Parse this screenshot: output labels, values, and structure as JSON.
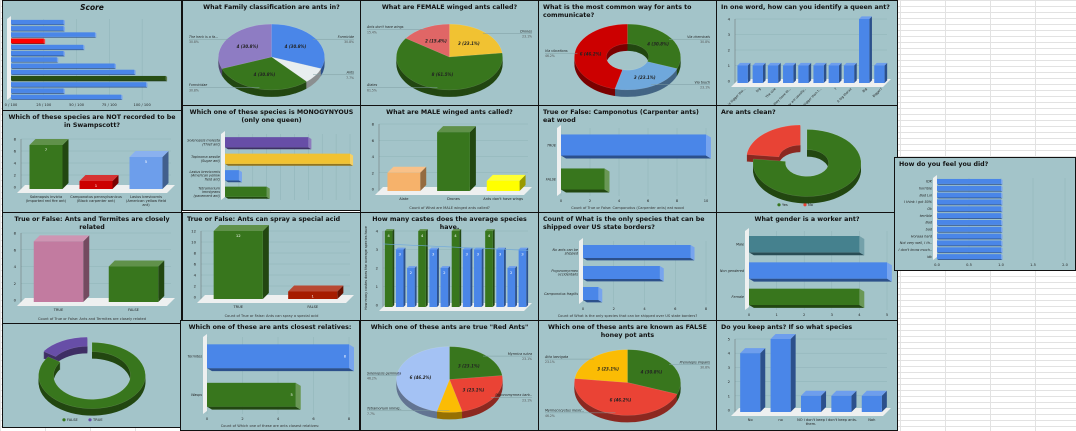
{
  "charts": [
    {
      "title": "Score",
      "type": "hbar",
      "categories": [
        "",
        "",
        "",
        "",
        "",
        "",
        "",
        "",
        "",
        "",
        "",
        "",
        ""
      ],
      "values": [
        40,
        40,
        64,
        25,
        55,
        40,
        35,
        79,
        94,
        118,
        103,
        40,
        84
      ],
      "colors": [
        "#4a86e8",
        "#4a86e8",
        "#4a86e8",
        "#ff0000",
        "#4a86e8",
        "#4a86e8",
        "#4a86e8",
        "#4a86e8",
        "#4a86e8",
        "#274e13",
        "#4a86e8",
        "#4a86e8",
        "#4a86e8"
      ],
      "xlim": [
        0,
        122
      ],
      "ticks": [
        0,
        25,
        50,
        75,
        100
      ],
      "tick_labels": [
        "0 / 100",
        "25 / 100",
        "50 / 100",
        "75 / 100",
        "100 / 100"
      ]
    },
    {
      "title": "What Family classification are ants in?",
      "type": "pie",
      "categories": [
        "Formicide",
        "Ants",
        "Formicidae",
        "The heck is a fa..."
      ],
      "values": [
        4,
        1,
        4,
        4
      ],
      "percents": [
        "30.8%",
        "7.7%",
        "30.8%",
        "30.8%"
      ],
      "slice_labels": [
        "4 (30.8%)",
        "",
        "4 (30.8%)",
        "4 (30.8%)"
      ],
      "colors": [
        "#4a86e8",
        "#e8eef0",
        "#38761d",
        "#8e7cc3"
      ]
    },
    {
      "title": "What are FEMALE winged ants called?",
      "type": "pie",
      "categories": [
        "Drones",
        "Alates",
        "Ants don't have wings"
      ],
      "values": [
        3,
        8,
        2
      ],
      "percents": [
        "23.1%",
        "61.5%",
        "15.4%"
      ],
      "slice_labels": [
        "3 (23.1%)",
        "8 (61.5%)",
        "2 (15.4%)"
      ],
      "colors": [
        "#f1c232",
        "#38761d",
        "#e06666"
      ]
    },
    {
      "title": "What is the most common way for ants to communicate?",
      "type": "donut",
      "categories": [
        "Via chemicals",
        "Via touch",
        "Via vibrations"
      ],
      "values": [
        4,
        3,
        6
      ],
      "percents": [
        "30.8%",
        "23.1%",
        "46.2%"
      ],
      "slice_labels": [
        "4 (30.8%)",
        "3 (23.1%)",
        "6 (46.2%)"
      ],
      "colors": [
        "#38761d",
        "#6fa8dc",
        "#cc0000"
      ]
    },
    {
      "title": "In one word, how can you identify a queen ant?",
      "type": "vbar",
      "categories": [
        "...is bigger tha...",
        "big",
        "The size",
        "...they have th...",
        "...they are usually...",
        "...is bigger than t...",
        "?",
        "A big thorax",
        "Big",
        "Bigger?"
      ],
      "values": [
        1,
        1,
        1,
        1,
        1,
        1,
        1,
        1,
        4,
        1
      ],
      "color": "#4a86e8",
      "ylim": [
        0,
        4
      ],
      "ticks": [
        0,
        1,
        2,
        3,
        4
      ],
      "tick_labels": [
        "0",
        "1",
        "2",
        "3",
        "4"
      ],
      "rotate_labels": true
    },
    {
      "title": "Which of these species are NOT recorded to be in Swampscott?",
      "type": "vbar",
      "categories": [
        "Solenopsis invicta\n(Imported red fire ant)",
        "Camponotus pennsylvanicus\n(Black carpenter ant)",
        "Lasius brevicornis\n(American yellow field\nant)"
      ],
      "values": [
        7,
        1,
        5
      ],
      "colors": [
        "#38761d",
        "#cc0000",
        "#6d9eeb"
      ],
      "ylim": [
        0,
        8
      ],
      "ticks": [
        0,
        2,
        4,
        6,
        8
      ],
      "tick_labels": [
        "0",
        "2",
        "4",
        "6",
        "8"
      ],
      "show_values": true
    },
    {
      "title": "Which one of these species is MONOGYNYOUS (only one queen)",
      "type": "hbar",
      "categories": [
        "Solenopsis molesta\n(Thief ant)",
        "Tapinoma sessile\n(Sugar ant)",
        "Lasius brevicornis\n(American yellow\nfield ant)",
        "Tetramorium\nimmigrans\n(pavement ant)"
      ],
      "values": [
        6,
        9,
        1,
        3
      ],
      "colors": [
        "#674ea7",
        "#f1c232",
        "#4a86e8",
        "#38761d"
      ],
      "xlim": [
        0,
        9
      ],
      "ticks": [
        0,
        1,
        2,
        3,
        4,
        5,
        6,
        7,
        8,
        9
      ],
      "tick_labels": [
        "",
        "",
        "",
        "",
        "",
        "",
        "",
        "",
        "",
        ""
      ]
    },
    {
      "title": "What are MALE winged ants called?",
      "type": "vbar",
      "categories": [
        "Alate",
        "Drones",
        "Ants don't have wings"
      ],
      "values": [
        2,
        7,
        1
      ],
      "colors": [
        "#f6b26b",
        "#38761d",
        "#ffff00"
      ],
      "ylim": [
        0,
        8
      ],
      "ticks": [
        0,
        2,
        4,
        6,
        8
      ],
      "tick_labels": [
        "0",
        "2",
        "4",
        "6",
        "8"
      ],
      "footnote": "Count of What are MALE winged ants called?"
    },
    {
      "title": "True or False:  Camponotus (Carpenter ants) eat wood",
      "type": "hbar",
      "categories": [
        "TRUE",
        "FALSE"
      ],
      "values": [
        10,
        3
      ],
      "colors": [
        "#4a86e8",
        "#38761d"
      ],
      "xlim": [
        0,
        10
      ],
      "ticks": [
        0,
        2,
        4,
        6,
        8,
        10
      ],
      "tick_labels": [
        "0",
        "2",
        "4",
        "6",
        "8",
        "10"
      ],
      "footnote": "Count of True or False:  Camponotus (Carpenter ants) eat wood"
    },
    {
      "title": "Are ants clean?",
      "type": "donut",
      "categories": [
        "Yes",
        "No"
      ],
      "values": [
        10,
        3
      ],
      "colors": [
        "#38761d",
        "#e84335"
      ],
      "explode": 1,
      "legend": true,
      "slice_labels": [
        "",
        ""
      ],
      "percents": [
        "",
        ""
      ],
      "no_callouts": true
    },
    {
      "title": "How do you feel you did?",
      "type": "hbar",
      "categories": [
        "IDK",
        "horrible",
        "Bad Lol",
        "I think i got 50%",
        "Ok",
        "terrible",
        "Bad",
        "bad",
        "Horaaa hard",
        "Not very well, I th..",
        "I don't know much..",
        "idk"
      ],
      "values": [
        1,
        1,
        1,
        1,
        1,
        1,
        1,
        1,
        1,
        1,
        1,
        1
      ],
      "color": "#4a86e8",
      "xlim": [
        0,
        2
      ],
      "ticks": [
        0,
        0.5,
        1,
        1.5,
        2
      ],
      "tick_labels": [
        "0.0",
        "0.5",
        "1.0",
        "1.5",
        "2.0"
      ]
    },
    {
      "title": "True or False:  Ants and Termites are closely related",
      "type": "vbar",
      "categories": [
        "TRUE",
        "FALSE"
      ],
      "values": [
        7,
        4
      ],
      "colors": [
        "#c27ba0",
        "#38761d"
      ],
      "ylim": [
        0,
        8
      ],
      "ticks": [
        0,
        2,
        4,
        6,
        8
      ],
      "tick_labels": [
        "0",
        "2",
        "4",
        "6",
        "8"
      ],
      "footnote": "Count of True or False:  Ants and Termites are closely related"
    },
    {
      "title": "True or False:  Ants can spray a special acid",
      "type": "vbar",
      "categories": [
        "TRUE",
        "FALSE"
      ],
      "values": [
        12,
        1
      ],
      "colors": [
        "#38761d",
        "#a61c00"
      ],
      "ylim": [
        0,
        12
      ],
      "ticks": [
        0,
        2,
        4,
        6,
        8,
        10,
        12
      ],
      "tick_labels": [
        "0",
        "2",
        "4",
        "6",
        "8",
        "10",
        "12"
      ],
      "show_values": true,
      "footnote": "Count of True or False:  Ants can spray a special acid"
    },
    {
      "title": "How many castes does the average species have.",
      "type": "vbar",
      "categories": [
        "",
        "",
        "",
        "",
        "",
        "",
        "",
        "",
        "",
        "",
        "",
        "",
        ""
      ],
      "values": [
        4,
        3,
        2,
        4,
        3,
        2,
        4,
        3,
        3,
        4,
        3,
        2,
        3
      ],
      "colors": [
        "#38761d",
        "#4a86e8",
        "#4a86e8",
        "#38761d",
        "#4a86e8",
        "#4a86e8",
        "#38761d",
        "#4a86e8",
        "#4a86e8",
        "#38761d",
        "#4a86e8",
        "#4a86e8",
        "#4a86e8"
      ],
      "ylim": [
        0,
        4
      ],
      "ticks": [
        0,
        1,
        2,
        3,
        4
      ],
      "tick_labels": [
        "0",
        "1",
        "2",
        "3",
        "4"
      ],
      "show_values": true,
      "trendline": true,
      "ylabel": "How many castes does the average species have"
    },
    {
      "title": "Count of What is the only species that can be shipped over US state borders?",
      "type": "hbar",
      "categories": [
        "No ants can be\nshipped",
        "Pogonomyrmex\noccidentalis",
        "Camponotus fragilis"
      ],
      "values": [
        7,
        5,
        1
      ],
      "color": "#4a86e8",
      "xlim": [
        0,
        8
      ],
      "ticks": [
        0,
        2,
        4,
        6,
        8
      ],
      "tick_labels": [
        "0",
        "2",
        "4",
        "6",
        "8"
      ],
      "footnote": "Count of What is the only species that can be shipped over US state borders?"
    },
    {
      "title": "What gender is a worker ant?",
      "type": "hbar",
      "categories": [
        "Male",
        "Non gendered",
        "Female"
      ],
      "values": [
        4,
        5,
        4
      ],
      "colors": [
        "#45818e",
        "#4a86e8",
        "#38761d"
      ],
      "xlim": [
        0,
        5
      ],
      "ticks": [
        0,
        1,
        2,
        3,
        4,
        5
      ],
      "tick_labels": [
        "0",
        "1",
        "2",
        "3",
        "4",
        "5"
      ]
    },
    {
      "title": "",
      "type": "donut",
      "categories": [
        "FALSE",
        "TRUE"
      ],
      "values": [
        11,
        2
      ],
      "colors": [
        "#38761d",
        "#674ea7"
      ],
      "explode": 1,
      "legend": true,
      "slice_labels": [
        "",
        ""
      ],
      "percents": [
        "",
        ""
      ],
      "no_callouts": true,
      "thin": true
    },
    {
      "title": "Which one of these are ants closest relatives:",
      "type": "hbar",
      "categories": [
        "Termites",
        "Wasps"
      ],
      "values": [
        8,
        5
      ],
      "colors": [
        "#4a86e8",
        "#38761d"
      ],
      "xlim": [
        0,
        8
      ],
      "ticks": [
        0,
        2,
        4,
        6,
        8
      ],
      "tick_labels": [
        "0",
        "2",
        "4",
        "6",
        "8"
      ],
      "show_values": true,
      "footnote": "Count of Which one of these are ants closest relatives:"
    },
    {
      "title": "Which one of these ants are true \"Red Ants\"",
      "type": "pie",
      "categories": [
        "Myrmica rubra",
        "Pogonomyrmex barb..",
        "Tetramorium immig..",
        "Solenopsis geminata"
      ],
      "values": [
        3,
        3,
        1,
        6
      ],
      "percents": [
        "23.1%",
        "23.1%",
        "7.7%",
        "46.2%"
      ],
      "slice_labels": [
        "3 (23.1%)",
        "3 (23.1%)",
        "",
        "6 (46.2%)"
      ],
      "colors": [
        "#38761d",
        "#ea4335",
        "#fbbc04",
        "#a4c2f4"
      ]
    },
    {
      "title": "Which one of these ants are known as FALSE honey pot ants",
      "type": "pie",
      "categories": [
        "Prenolepis imparis",
        "Myrmecocystus mexic..",
        "Atta laevigata"
      ],
      "values": [
        4,
        6,
        3
      ],
      "percents": [
        "30.8%",
        "46.2%",
        "23.1%"
      ],
      "slice_labels": [
        "4 (30.8%)",
        "6 (46.2%)",
        "3 (23.1%)"
      ],
      "colors": [
        "#38761d",
        "#ea4335",
        "#fbbc04"
      ]
    },
    {
      "title": "Do you keep ants?  If so what species",
      "type": "vbar",
      "categories": [
        "No",
        "no",
        "NO i don't keep\nthem.",
        "I don't keep ants.",
        "Nah"
      ],
      "values": [
        4,
        5,
        1,
        1,
        1
      ],
      "color": "#4a86e8",
      "ylim": [
        0,
        5
      ],
      "ticks": [
        0,
        1,
        2,
        3,
        4,
        5
      ],
      "tick_labels": [
        "0",
        "1",
        "2",
        "3",
        "4",
        "5"
      ]
    }
  ]
}
